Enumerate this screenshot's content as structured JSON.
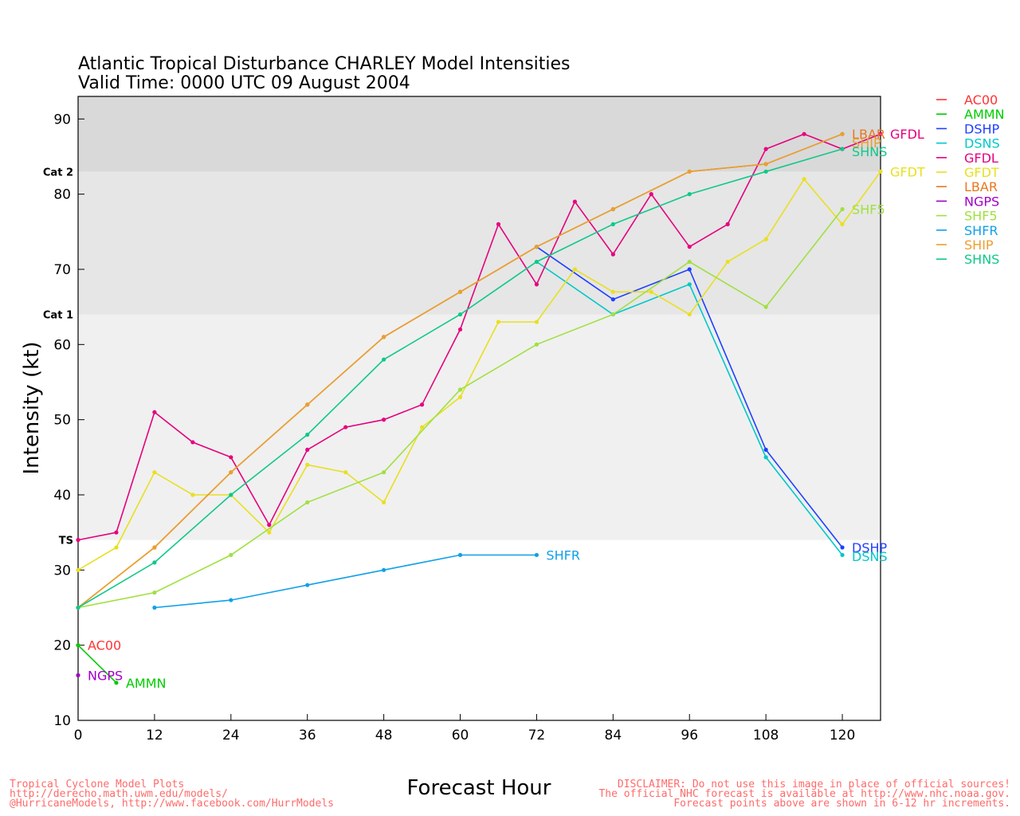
{
  "chart_data": {
    "type": "line",
    "title": "Atlantic Tropical Disturbance CHARLEY Model Intensities",
    "subtitle": "Valid Time: 0000 UTC 09 August 2004",
    "xlabel": "Forecast Hour",
    "ylabel": "Intensity (kt)",
    "xlim": [
      0,
      126
    ],
    "ylim": [
      10,
      93
    ],
    "xticks": [
      0,
      12,
      24,
      36,
      48,
      60,
      72,
      84,
      96,
      108,
      120
    ],
    "yticks": [
      10,
      20,
      30,
      40,
      50,
      60,
      70,
      80,
      90
    ],
    "bands": [
      {
        "label": "TS",
        "from": 34,
        "to": 64,
        "color": "#f0f0f0"
      },
      {
        "label": "Cat 1",
        "from": 64,
        "to": 83,
        "color": "#e6e6e6"
      },
      {
        "label": "Cat 2",
        "from": 83,
        "to": 96,
        "color": "#d9d9d9"
      }
    ],
    "legend_position": "right",
    "series": [
      {
        "name": "AC00",
        "color": "#ff3333",
        "points": [
          [
            0,
            20
          ]
        ],
        "end_label": "AC00"
      },
      {
        "name": "AMMN",
        "color": "#00cc00",
        "points": [
          [
            0,
            20
          ],
          [
            6,
            15
          ]
        ],
        "end_label": "AMMN"
      },
      {
        "name": "DSHP",
        "color": "#1f3fff",
        "points": [
          [
            72,
            73
          ],
          [
            84,
            66
          ],
          [
            96,
            70
          ],
          [
            108,
            46
          ],
          [
            120,
            33
          ]
        ],
        "end_label": "DSHP"
      },
      {
        "name": "DSNS",
        "color": "#00c8c8",
        "points": [
          [
            72,
            71
          ],
          [
            84,
            64
          ],
          [
            96,
            68
          ],
          [
            108,
            45
          ],
          [
            120,
            32
          ]
        ],
        "end_label": "DSNS"
      },
      {
        "name": "GFDL",
        "color": "#e6007e",
        "points": [
          [
            0,
            34
          ],
          [
            6,
            35
          ],
          [
            12,
            51
          ],
          [
            18,
            47
          ],
          [
            24,
            45
          ],
          [
            30,
            36
          ],
          [
            36,
            46
          ],
          [
            42,
            49
          ],
          [
            48,
            50
          ],
          [
            54,
            52
          ],
          [
            60,
            62
          ],
          [
            66,
            76
          ],
          [
            72,
            68
          ],
          [
            78,
            79
          ],
          [
            84,
            72
          ],
          [
            90,
            80
          ],
          [
            96,
            73
          ],
          [
            102,
            76
          ],
          [
            108,
            86
          ],
          [
            114,
            88
          ],
          [
            120,
            86
          ],
          [
            126,
            88
          ]
        ],
        "end_label": "GFDL"
      },
      {
        "name": "GFDT",
        "color": "#e8e020",
        "points": [
          [
            0,
            30
          ],
          [
            6,
            33
          ],
          [
            12,
            43
          ],
          [
            18,
            40
          ],
          [
            24,
            40
          ],
          [
            30,
            35
          ],
          [
            36,
            44
          ],
          [
            42,
            43
          ],
          [
            48,
            39
          ],
          [
            54,
            49
          ],
          [
            60,
            53
          ],
          [
            66,
            63
          ],
          [
            72,
            63
          ],
          [
            78,
            70
          ],
          [
            84,
            67
          ],
          [
            90,
            67
          ],
          [
            96,
            64
          ],
          [
            102,
            71
          ],
          [
            108,
            74
          ],
          [
            114,
            82
          ],
          [
            120,
            76
          ],
          [
            126,
            83
          ]
        ],
        "end_label": "GFDT"
      },
      {
        "name": "LBAR",
        "color": "#e87820",
        "points": [
          [
            0,
            25
          ],
          [
            12,
            33
          ],
          [
            24,
            43
          ],
          [
            36,
            52
          ],
          [
            48,
            61
          ],
          [
            60,
            67
          ],
          [
            72,
            73
          ],
          [
            84,
            78
          ],
          [
            96,
            83
          ],
          [
            108,
            84
          ],
          [
            120,
            88
          ]
        ],
        "end_label": "LBAR"
      },
      {
        "name": "NGPS",
        "color": "#a000c8",
        "points": [
          [
            0,
            16
          ]
        ],
        "end_label": "NGPS"
      },
      {
        "name": "SHF5",
        "color": "#a0e040",
        "points": [
          [
            0,
            25
          ],
          [
            12,
            27
          ],
          [
            24,
            32
          ],
          [
            36,
            39
          ],
          [
            48,
            43
          ],
          [
            60,
            54
          ],
          [
            72,
            60
          ],
          [
            84,
            64
          ],
          [
            96,
            71
          ],
          [
            108,
            65
          ],
          [
            120,
            78
          ]
        ],
        "end_label": "SHF5"
      },
      {
        "name": "SHFR",
        "color": "#10a0e8",
        "points": [
          [
            12,
            25
          ],
          [
            24,
            26
          ],
          [
            36,
            28
          ],
          [
            48,
            30
          ],
          [
            60,
            32
          ],
          [
            72,
            32
          ]
        ],
        "end_label": "SHFR"
      },
      {
        "name": "SHIP",
        "color": "#e8a030",
        "points": [
          [
            0,
            25
          ],
          [
            12,
            33
          ],
          [
            24,
            43
          ],
          [
            36,
            52
          ],
          [
            48,
            61
          ],
          [
            60,
            67
          ],
          [
            72,
            73
          ],
          [
            84,
            78
          ],
          [
            96,
            83
          ],
          [
            108,
            84
          ],
          [
            120,
            88
          ]
        ],
        "end_label": "SHIP"
      },
      {
        "name": "SHNS",
        "color": "#10c888",
        "points": [
          [
            0,
            25
          ],
          [
            12,
            31
          ],
          [
            24,
            40
          ],
          [
            36,
            48
          ],
          [
            48,
            58
          ],
          [
            60,
            64
          ],
          [
            72,
            71
          ],
          [
            84,
            76
          ],
          [
            96,
            80
          ],
          [
            108,
            83
          ],
          [
            120,
            86
          ]
        ],
        "end_label": "SHNS"
      }
    ]
  },
  "footer": {
    "left_lines": [
      "Tropical Cyclone Model Plots",
      "http://derecho.math.uwm.edu/models/",
      "@HurricaneModels, http://www.facebook.com/HurrModels"
    ],
    "right_lines": [
      "DISCLAIMER: Do not use this image in place of official sources!",
      "The official NHC forecast is available at http://www.nhc.noaa.gov.",
      "Forecast points above are shown in 6-12 hr increments."
    ]
  }
}
